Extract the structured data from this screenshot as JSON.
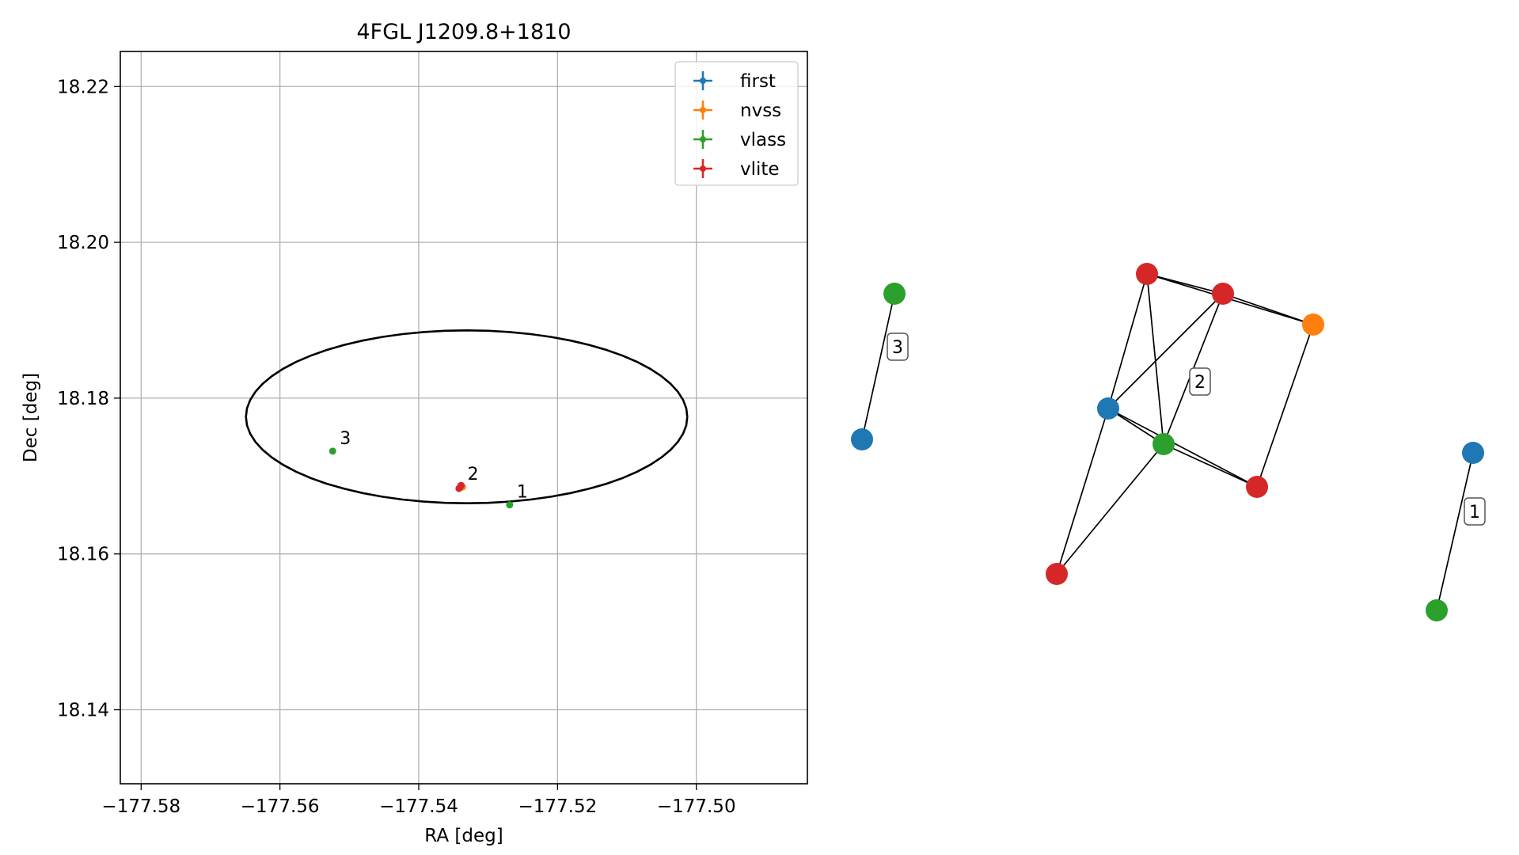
{
  "chart_data": [
    {
      "type": "scatter",
      "title": "4FGL J1209.8+1810",
      "xlabel": "RA [deg]",
      "ylabel": "Dec [deg]",
      "xlim": [
        -177.583,
        -177.484
      ],
      "ylim": [
        18.1305,
        18.2245
      ],
      "xticks": [
        -177.58,
        -177.56,
        -177.54,
        -177.52,
        -177.5
      ],
      "xtick_labels": [
        "−177.58",
        "−177.56",
        "−177.54",
        "−177.52",
        "−177.50"
      ],
      "yticks": [
        18.14,
        18.16,
        18.18,
        18.2,
        18.22
      ],
      "ytick_labels": [
        "18.14",
        "18.16",
        "18.18",
        "18.20",
        "18.22"
      ],
      "grid": true,
      "legend_position": "top-right",
      "series": [
        {
          "name": "first",
          "color": "#1f77b4",
          "points": []
        },
        {
          "name": "nvss",
          "color": "#ff7f0e",
          "points": [
            {
              "x": -177.5337,
              "y": 18.1686
            }
          ]
        },
        {
          "name": "vlass",
          "color": "#2ca02c",
          "points": [
            {
              "x": -177.5524,
              "y": 18.1732
            },
            {
              "x": -177.5269,
              "y": 18.1663
            },
            {
              "x": -177.5341,
              "y": 18.1685
            }
          ]
        },
        {
          "name": "vlite",
          "color": "#d62728",
          "points": [
            {
              "x": -177.5342,
              "y": 18.1684
            },
            {
              "x": -177.5339,
              "y": 18.1688
            }
          ]
        }
      ],
      "annotations": [
        {
          "text": "1",
          "x": -177.5269,
          "y": 18.1663
        },
        {
          "text": "2",
          "x": -177.534,
          "y": 18.1686
        },
        {
          "text": "3",
          "x": -177.5524,
          "y": 18.1732
        }
      ],
      "ellipse": {
        "center_x": -177.5331,
        "center_y": 18.1776,
        "semi_ra": 0.0318,
        "semi_dec": 0.0111,
        "color": "#000000"
      }
    },
    {
      "type": "network",
      "colors": {
        "first": "#1f77b4",
        "nvss": "#ff7f0e",
        "vlass": "#2ca02c",
        "vlite": "#d62728"
      },
      "groups": [
        {
          "label": "3",
          "nodes": [
            {
              "id": "g3-vlass",
              "catalog": "vlass"
            },
            {
              "id": "g3-first",
              "catalog": "first"
            }
          ],
          "edges": [
            [
              "g3-vlass",
              "g3-first"
            ]
          ]
        },
        {
          "label": "2",
          "nodes": [
            {
              "id": "g2-vlite-a",
              "catalog": "vlite"
            },
            {
              "id": "g2-vlite-b",
              "catalog": "vlite"
            },
            {
              "id": "g2-nvss",
              "catalog": "nvss"
            },
            {
              "id": "g2-first",
              "catalog": "first"
            },
            {
              "id": "g2-vlass",
              "catalog": "vlass"
            },
            {
              "id": "g2-vlite-c",
              "catalog": "vlite"
            },
            {
              "id": "g2-vlite-d",
              "catalog": "vlite"
            }
          ],
          "edges": [
            [
              "g2-vlite-a",
              "g2-vlite-b"
            ],
            [
              "g2-vlite-a",
              "g2-nvss"
            ],
            [
              "g2-vlite-a",
              "g2-first"
            ],
            [
              "g2-vlite-a",
              "g2-vlass"
            ],
            [
              "g2-vlite-b",
              "g2-nvss"
            ],
            [
              "g2-vlite-b",
              "g2-first"
            ],
            [
              "g2-vlite-b",
              "g2-vlass"
            ],
            [
              "g2-nvss",
              "g2-vlite-c"
            ],
            [
              "g2-first",
              "g2-vlass"
            ],
            [
              "g2-first",
              "g2-vlite-c"
            ],
            [
              "g2-first",
              "g2-vlite-d"
            ],
            [
              "g2-vlass",
              "g2-vlite-c"
            ],
            [
              "g2-vlass",
              "g2-vlite-d"
            ]
          ]
        },
        {
          "label": "1",
          "nodes": [
            {
              "id": "g1-first",
              "catalog": "first"
            },
            {
              "id": "g1-vlass",
              "catalog": "vlass"
            }
          ],
          "edges": [
            [
              "g1-first",
              "g1-vlass"
            ]
          ]
        }
      ]
    }
  ]
}
